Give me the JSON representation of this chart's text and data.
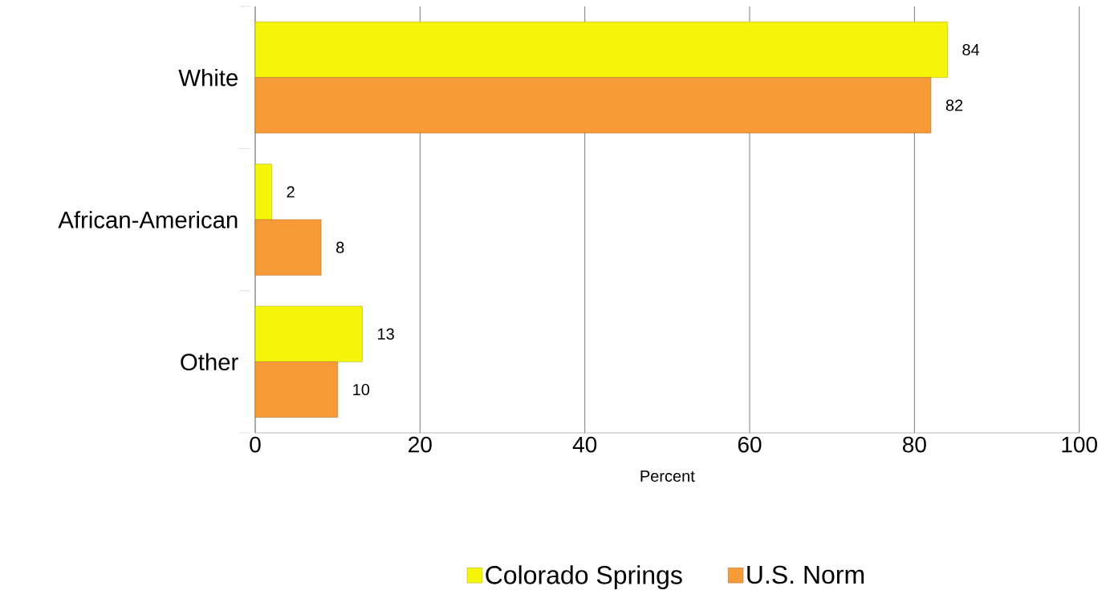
{
  "chart_data": {
    "type": "bar",
    "orientation": "horizontal",
    "categories": [
      "White",
      "African-American",
      "Other"
    ],
    "series": [
      {
        "name": "Colorado Springs",
        "color": "#f5f50a",
        "values": [
          84,
          2,
          13
        ]
      },
      {
        "name": "U.S. Norm",
        "color": "#f79a38",
        "values": [
          82,
          8,
          10
        ]
      }
    ],
    "xlabel": "Percent",
    "xlim": [
      0,
      100
    ],
    "xticks": [
      0,
      20,
      40,
      60,
      80,
      100
    ],
    "grid": "x",
    "data_labels": true,
    "legend": "bottom"
  }
}
